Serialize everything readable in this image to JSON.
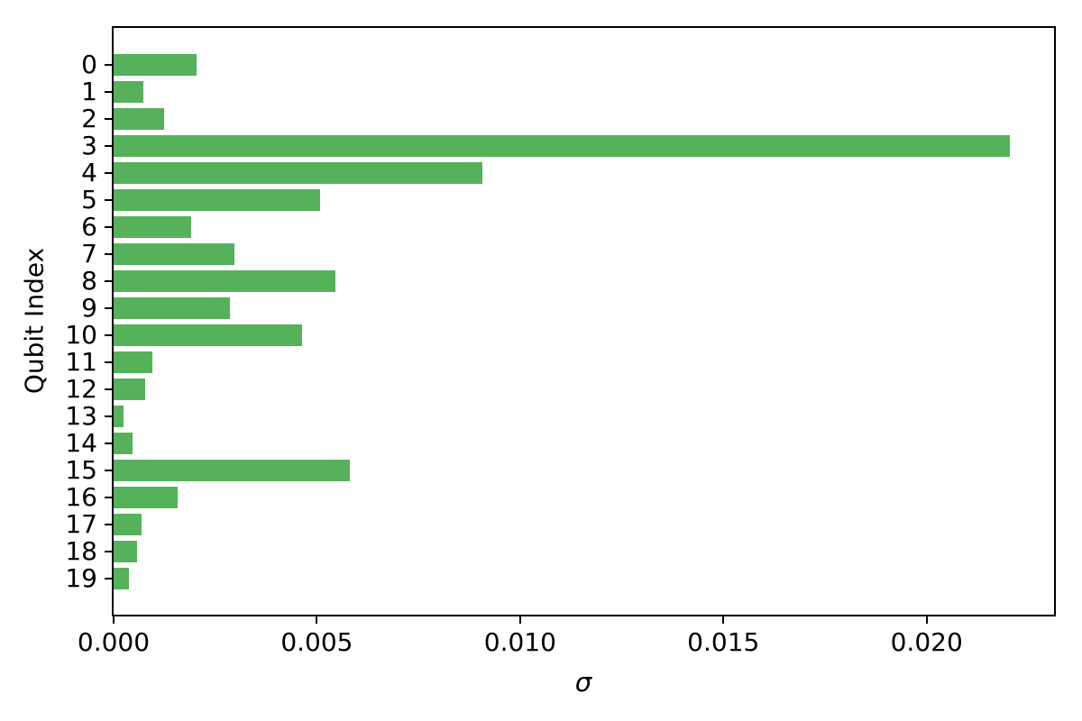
{
  "chart_data": {
    "type": "bar",
    "orientation": "horizontal",
    "title": "",
    "xlabel": "σ",
    "ylabel": "Qubit Index",
    "categories": [
      "0",
      "1",
      "2",
      "3",
      "4",
      "5",
      "6",
      "7",
      "8",
      "9",
      "10",
      "11",
      "12",
      "13",
      "14",
      "15",
      "16",
      "17",
      "18",
      "19"
    ],
    "values": [
      0.00205,
      0.00073,
      0.00125,
      0.02204,
      0.00907,
      0.00508,
      0.00191,
      0.00297,
      0.00546,
      0.00287,
      0.00463,
      0.00095,
      0.00077,
      0.00024,
      0.00047,
      0.00582,
      0.00157,
      0.00069,
      0.00058,
      0.00038
    ],
    "x_ticks": [
      0.0,
      0.005,
      0.01,
      0.015,
      0.02
    ],
    "x_tick_labels": [
      "0.000",
      "0.005",
      "0.010",
      "0.015",
      "0.020"
    ],
    "xlim": [
      0,
      0.023134
    ],
    "grid": false,
    "legend": null,
    "colors": {
      "bar": "#55b25a",
      "axis": "#000000",
      "text": "#000000",
      "background": "#ffffff"
    }
  }
}
